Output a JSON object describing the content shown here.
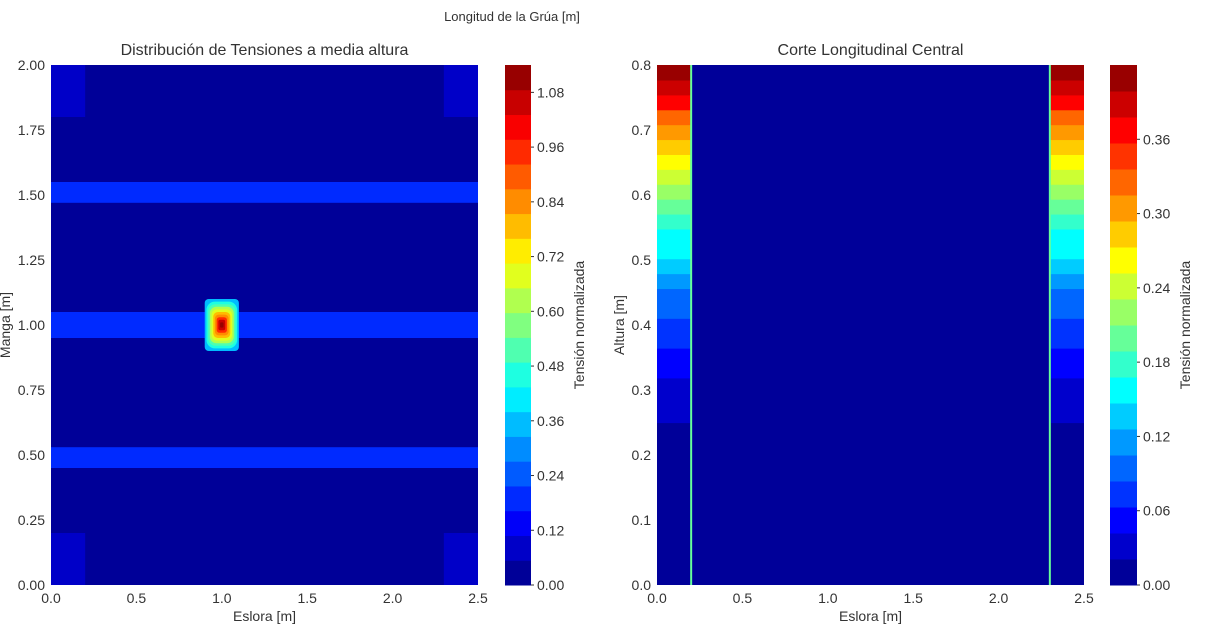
{
  "figure": {
    "header_label": "Longitud de la Grúa [m]"
  },
  "chart_data": [
    {
      "type": "heatmap",
      "title": "Distribución de Tensiones a media altura",
      "xlabel": "Eslora [m]",
      "ylabel": "Manga [m]",
      "xlim": [
        0,
        2.5
      ],
      "ylim": [
        0,
        2.0
      ],
      "xticks": [
        "0.0",
        "0.5",
        "1.0",
        "1.5",
        "2.0",
        "2.5"
      ],
      "yticks": [
        "0.00",
        "0.25",
        "0.50",
        "0.75",
        "1.00",
        "1.25",
        "1.50",
        "1.75",
        "2.00"
      ],
      "colormap": "jet",
      "background_value": 0.0,
      "regions": [
        {
          "x": [
            0.0,
            0.2
          ],
          "y": [
            0.0,
            0.2
          ],
          "value": 0.06
        },
        {
          "x": [
            2.3,
            2.5
          ],
          "y": [
            0.0,
            0.2
          ],
          "value": 0.06
        },
        {
          "x": [
            0.0,
            0.2
          ],
          "y": [
            1.8,
            2.0
          ],
          "value": 0.06
        },
        {
          "x": [
            2.3,
            2.5
          ],
          "y": [
            1.8,
            2.0
          ],
          "value": 0.06
        },
        {
          "x": [
            0.0,
            2.5
          ],
          "y": [
            0.45,
            0.53
          ],
          "value": 0.18
        },
        {
          "x": [
            0.0,
            2.5
          ],
          "y": [
            0.95,
            1.05
          ],
          "value": 0.18
        },
        {
          "x": [
            0.0,
            2.5
          ],
          "y": [
            1.47,
            1.55
          ],
          "value": 0.18
        }
      ],
      "hotspot": {
        "center": [
          1.0,
          1.0
        ],
        "x_extent": [
          0.9,
          1.1
        ],
        "y_extent": [
          0.9,
          1.1
        ],
        "peak": 1.12,
        "edge": 0.36
      },
      "colorbar": {
        "label": "Tensión normalizada",
        "min": 0.0,
        "max": 1.14,
        "levels": 21,
        "ticks": [
          "0.00",
          "0.12",
          "0.24",
          "0.36",
          "0.48",
          "0.60",
          "0.72",
          "0.84",
          "0.96",
          "1.08"
        ]
      }
    },
    {
      "type": "heatmap",
      "title": "Corte Longitudinal Central",
      "xlabel": "Eslora [m]",
      "ylabel": "Altura [m]",
      "xlim": [
        0,
        2.5
      ],
      "ylim": [
        0,
        0.8
      ],
      "xticks": [
        "0.0",
        "0.5",
        "1.0",
        "1.5",
        "2.0",
        "2.5"
      ],
      "yticks": [
        "0.0",
        "0.1",
        "0.2",
        "0.3",
        "0.4",
        "0.5",
        "0.6",
        "0.7",
        "0.8"
      ],
      "colormap": "jet",
      "background_value": 0.0,
      "columns": [
        {
          "x": [
            0.0,
            0.2
          ],
          "y_start": 0.25,
          "value_bottom": 0.03,
          "value_top": 0.42
        },
        {
          "x": [
            2.3,
            2.5
          ],
          "y_start": 0.25,
          "value_bottom": 0.03,
          "value_top": 0.42
        }
      ],
      "edge_lines": [
        {
          "x": 0.2,
          "value": 0.2
        },
        {
          "x": 2.3,
          "value": 0.2
        }
      ],
      "colorbar": {
        "label": "Tensión normalizada",
        "min": 0.0,
        "max": 0.42,
        "levels": 20,
        "ticks": [
          "0.00",
          "0.06",
          "0.12",
          "0.18",
          "0.24",
          "0.30",
          "0.36"
        ]
      }
    }
  ]
}
